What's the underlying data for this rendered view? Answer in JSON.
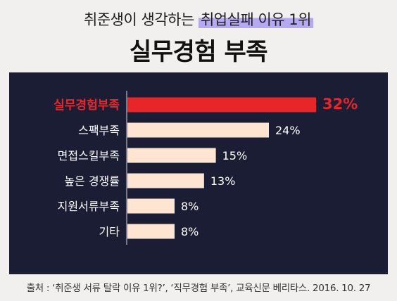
{
  "header": {
    "subtitle_prefix": "취준생이 생각하는",
    "subtitle_highlight": "취업실패 이유 1위",
    "title": "실무경험 부족"
  },
  "chart_data": {
    "type": "bar",
    "orientation": "horizontal",
    "categories": [
      "실무경험부족",
      "스팩부족",
      "면접스킬부족",
      "높은 경쟁률",
      "지원서류부족",
      "기타"
    ],
    "values": [
      32,
      24,
      15,
      13,
      8,
      8
    ],
    "value_labels": [
      "32%",
      "24%",
      "15%",
      "13%",
      "8%",
      "8%"
    ],
    "highlight_index": 0,
    "colors": {
      "highlight": "#e8262a",
      "bar": "#fde5d2",
      "label": "#ffffff",
      "panel": "#1b1d34"
    },
    "xlim": [
      0,
      32
    ]
  },
  "footer": {
    "source": "출처 : ‘취준생 서류 탈락 이유 1위?’, ‘직무경험 부족’, 교육신문 베리타스. 2016. 10. 27"
  }
}
